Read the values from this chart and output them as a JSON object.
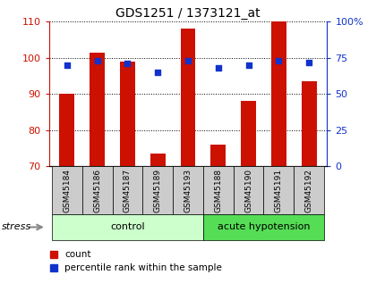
{
  "title": "GDS1251 / 1373121_at",
  "samples": [
    "GSM45184",
    "GSM45186",
    "GSM45187",
    "GSM45189",
    "GSM45193",
    "GSM45188",
    "GSM45190",
    "GSM45191",
    "GSM45192"
  ],
  "counts": [
    90,
    101.5,
    99,
    73.5,
    108,
    76,
    88,
    110,
    93.5
  ],
  "percentiles": [
    70,
    73,
    71,
    65,
    73,
    68,
    70,
    73,
    72
  ],
  "ylim_left": [
    70,
    110
  ],
  "ylim_right": [
    0,
    100
  ],
  "yticks_left": [
    70,
    80,
    90,
    100,
    110
  ],
  "yticks_right": [
    0,
    25,
    50,
    75,
    100
  ],
  "ytick_labels_right": [
    "0",
    "25",
    "50",
    "75",
    "100%"
  ],
  "bar_color": "#cc1100",
  "scatter_color": "#1133cc",
  "groups": [
    {
      "label": "control",
      "start": 0,
      "end": 5,
      "color": "#ccffcc"
    },
    {
      "label": "acute hypotension",
      "start": 5,
      "end": 9,
      "color": "#55dd55"
    }
  ],
  "stress_label": "stress",
  "legend_count_label": "count",
  "legend_pct_label": "percentile rank within the sample",
  "tick_bg_color": "#cccccc",
  "plot_bg": "#ffffff",
  "fig_width": 4.2,
  "fig_height": 3.45,
  "fig_dpi": 100
}
